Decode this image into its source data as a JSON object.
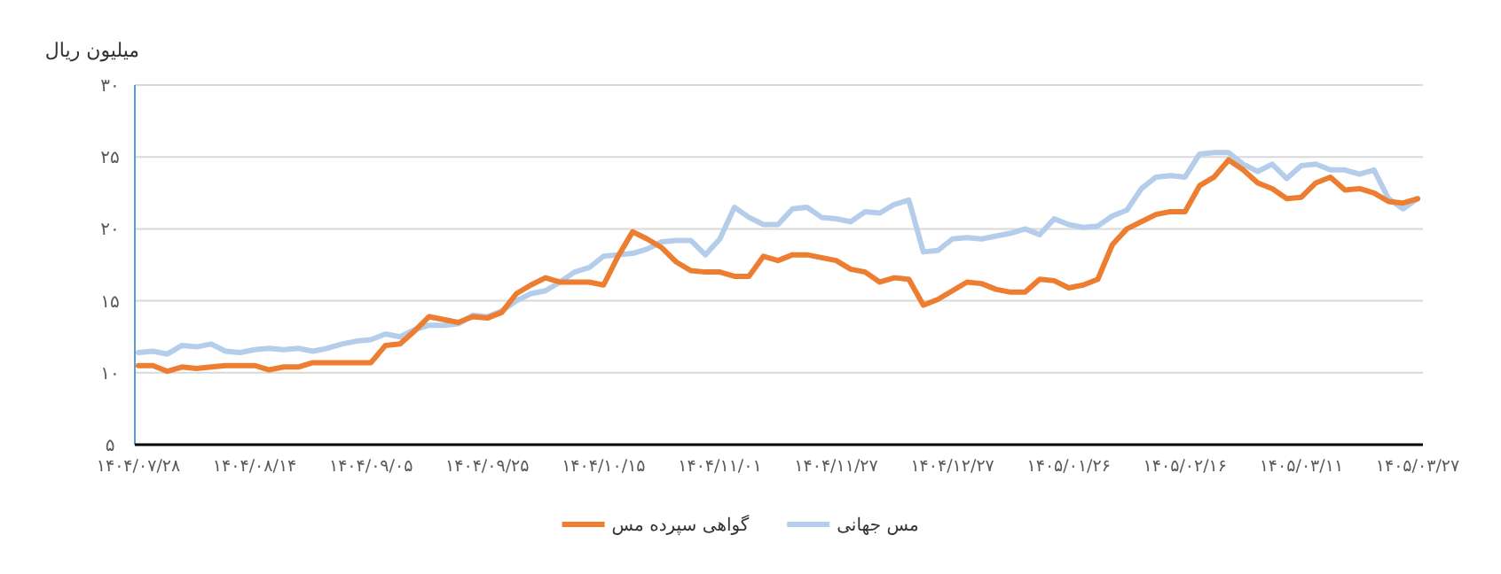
{
  "chart_data": {
    "type": "line",
    "ylabel": "میلیون ریال",
    "categories": [
      "۱۴۰۴/۰۷/۲۸",
      null,
      null,
      null,
      null,
      null,
      null,
      null,
      "۱۴۰۴/۰۸/۱۴",
      null,
      null,
      null,
      null,
      null,
      null,
      null,
      "۱۴۰۴/۰۹/۰۵",
      null,
      null,
      null,
      null,
      null,
      null,
      null,
      "۱۴۰۴/۰۹/۲۵",
      null,
      null,
      null,
      null,
      null,
      null,
      null,
      "۱۴۰۴/۱۰/۱۵",
      null,
      null,
      null,
      null,
      null,
      null,
      null,
      "۱۴۰۴/۱۱/۰۱",
      null,
      null,
      null,
      null,
      null,
      null,
      null,
      "۱۴۰۴/۱۱/۲۷",
      null,
      null,
      null,
      null,
      null,
      null,
      null,
      "۱۴۰۴/۱۲/۲۷",
      null,
      null,
      null,
      null,
      null,
      null,
      null,
      "۱۴۰۵/۰۱/۲۶",
      null,
      null,
      null,
      null,
      null,
      null,
      null,
      "۱۴۰۵/۰۲/۱۶",
      null,
      null,
      null,
      null,
      null,
      null,
      null,
      "۱۴۰۵/۰۳/۱۱",
      null,
      null,
      null,
      null,
      null,
      null,
      null,
      "۱۴۰۵/۰۳/۲۷"
    ],
    "series": [
      {
        "name": "مس جهانی",
        "color": "#b4cdea",
        "values": [
          11.4,
          11.5,
          11.3,
          11.9,
          11.8,
          12.0,
          11.5,
          11.4,
          11.6,
          11.7,
          11.6,
          11.7,
          11.5,
          11.7,
          12.0,
          12.2,
          12.3,
          12.7,
          12.5,
          13.0,
          13.3,
          13.3,
          13.4,
          14.0,
          13.9,
          14.3,
          15.0,
          15.5,
          15.7,
          16.3,
          17.0,
          17.3,
          18.1,
          18.2,
          18.3,
          18.6,
          19.1,
          19.2,
          19.2,
          18.2,
          19.3,
          21.5,
          20.8,
          20.3,
          20.3,
          21.4,
          21.5,
          20.8,
          20.7,
          20.5,
          21.2,
          21.1,
          21.7,
          22.0,
          18.4,
          18.5,
          19.3,
          19.4,
          19.3,
          19.5,
          19.7,
          20.0,
          19.6,
          20.7,
          20.3,
          20.1,
          20.2,
          20.9,
          21.3,
          22.8,
          23.6,
          23.7,
          23.6,
          25.2,
          25.3,
          25.3,
          24.5,
          24.0,
          24.5,
          23.5,
          24.4,
          24.5,
          24.1,
          24.1,
          23.8,
          24.1,
          22.1,
          21.4,
          22.1
        ]
      },
      {
        "name": "گواهی سپرده مس",
        "color": "#ed7d31",
        "values": [
          10.5,
          10.5,
          10.1,
          10.4,
          10.3,
          10.4,
          10.5,
          10.5,
          10.5,
          10.2,
          10.4,
          10.4,
          10.7,
          10.7,
          10.7,
          10.7,
          10.7,
          11.9,
          12.0,
          12.9,
          13.9,
          13.7,
          13.5,
          13.9,
          13.8,
          14.2,
          15.5,
          16.1,
          16.6,
          16.3,
          16.3,
          16.3,
          16.1,
          18.1,
          19.8,
          19.3,
          18.7,
          17.7,
          17.1,
          17.0,
          17.0,
          16.7,
          16.7,
          18.1,
          17.8,
          18.2,
          18.2,
          18.0,
          17.8,
          17.2,
          17.0,
          16.3,
          16.6,
          16.5,
          14.7,
          15.1,
          15.7,
          16.3,
          16.2,
          15.8,
          15.6,
          15.6,
          16.5,
          16.4,
          15.9,
          16.1,
          16.5,
          18.9,
          20.0,
          20.5,
          21.0,
          21.2,
          21.2,
          23.0,
          23.6,
          24.8,
          24.1,
          23.2,
          22.8,
          22.1,
          22.2,
          23.2,
          23.6,
          22.7,
          22.8,
          22.5,
          21.9,
          21.8,
          22.1
        ]
      }
    ],
    "ylim": [
      5,
      30
    ],
    "yticks": [
      {
        "value": 5,
        "label": "۵"
      },
      {
        "value": 10,
        "label": "۱۰"
      },
      {
        "value": 15,
        "label": "۱۵"
      },
      {
        "value": 20,
        "label": "۲۰"
      },
      {
        "value": 25,
        "label": "۲۵"
      },
      {
        "value": 30,
        "label": "۳۰"
      }
    ],
    "grid": "y",
    "legend": "bottom",
    "marker": "none",
    "line_style": "solid"
  }
}
